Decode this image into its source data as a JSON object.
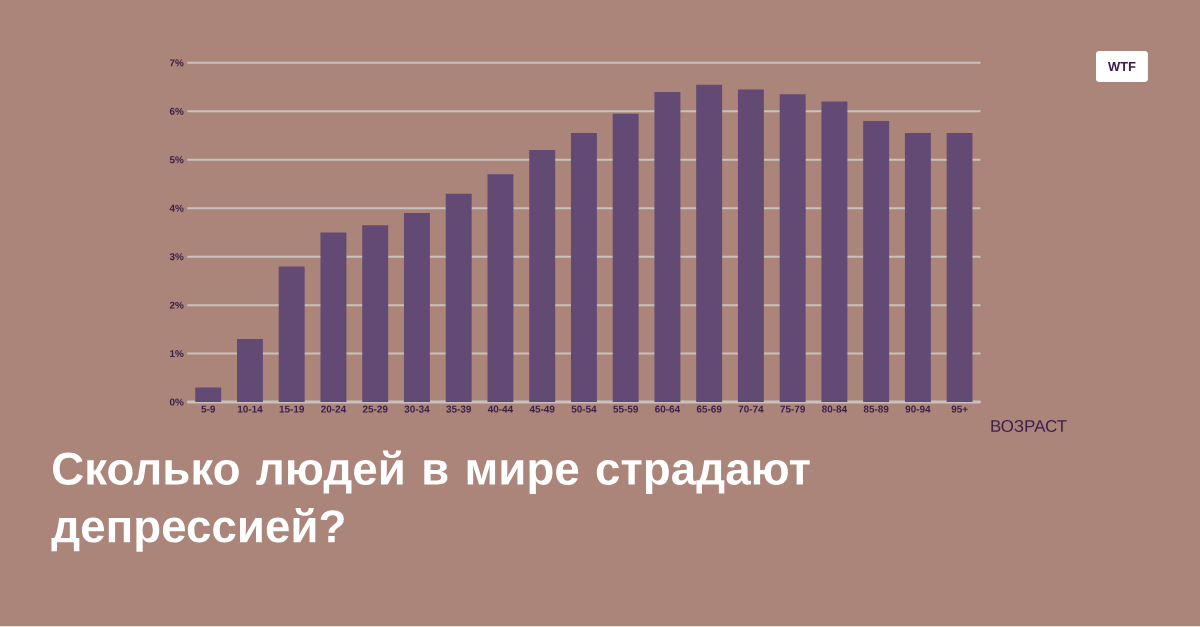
{
  "chart_data": {
    "type": "bar",
    "title": "Сколько людей в мире страдают депрессией?",
    "xlabel": "ВОЗРАСТ",
    "categories": [
      "5-9",
      "10-14",
      "15-19",
      "20-24",
      "25-29",
      "30-34",
      "35-39",
      "40-44",
      "45-49",
      "50-54",
      "55-59",
      "60-64",
      "65-69",
      "70-74",
      "75-79",
      "80-84",
      "85-89",
      "90-94",
      "95+"
    ],
    "values": [
      0.3,
      1.3,
      2.8,
      3.5,
      3.65,
      3.9,
      4.3,
      4.7,
      5.2,
      5.55,
      5.95,
      6.4,
      6.55,
      6.45,
      6.35,
      6.2,
      5.8,
      5.55,
      5.55
    ],
    "color": "#634a75",
    "ylim": [
      0,
      7
    ],
    "yticks": [
      {
        "value": 0,
        "label": "0%"
      },
      {
        "value": 1,
        "label": "1%"
      },
      {
        "value": 2,
        "label": "2%"
      },
      {
        "value": 3,
        "label": "3%"
      },
      {
        "value": 4,
        "label": "4%"
      },
      {
        "value": 5,
        "label": "5%"
      },
      {
        "value": 6,
        "label": "6%"
      },
      {
        "value": 7,
        "label": "7%"
      }
    ],
    "grid": "y",
    "annotations": [
      "WTF"
    ]
  }
}
